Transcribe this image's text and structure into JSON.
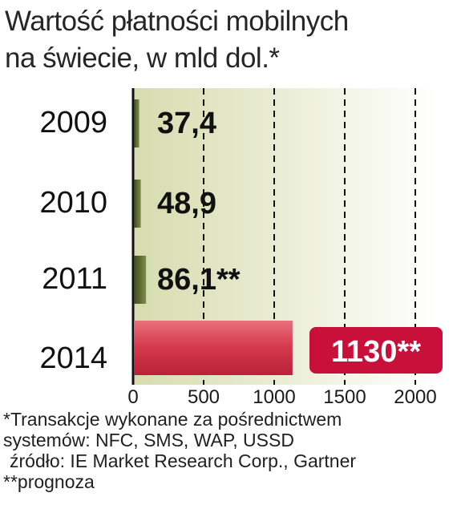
{
  "title_line1": "Wartość płatności mobilnych",
  "title_line2": "na świecie, w mld dol.*",
  "chart_data": {
    "type": "bar",
    "orientation": "horizontal",
    "categories": [
      "2009",
      "2010",
      "2011",
      "2014"
    ],
    "values": [
      37.4,
      48.9,
      86.1,
      1130
    ],
    "value_labels": [
      "37,4",
      "48,9",
      "86,1**",
      "1130**"
    ],
    "xlim": [
      0,
      2000
    ],
    "xticks": [
      0,
      500,
      1000,
      1500,
      2000
    ],
    "xtick_labels": [
      "0",
      "500",
      "1000",
      "1500",
      "2000"
    ],
    "grid": "vertical dashed",
    "highlighted_category": "2014",
    "colors": {
      "bar_regular": "#5a6a2e",
      "bar_highlight": "#d4384a",
      "label_highlight_bg": "#c8103a",
      "plot_bg_left": "#d6dcae",
      "plot_bg_right": "#ffffff"
    }
  },
  "footnotes": {
    "line1": "*Transakcje wykonane za pośrednictwem",
    "line2": "systemów: NFC, SMS, WAP, USSD",
    "line3": "źródło: IE Market Research Corp., Gartner",
    "line4": "**prognoza"
  }
}
